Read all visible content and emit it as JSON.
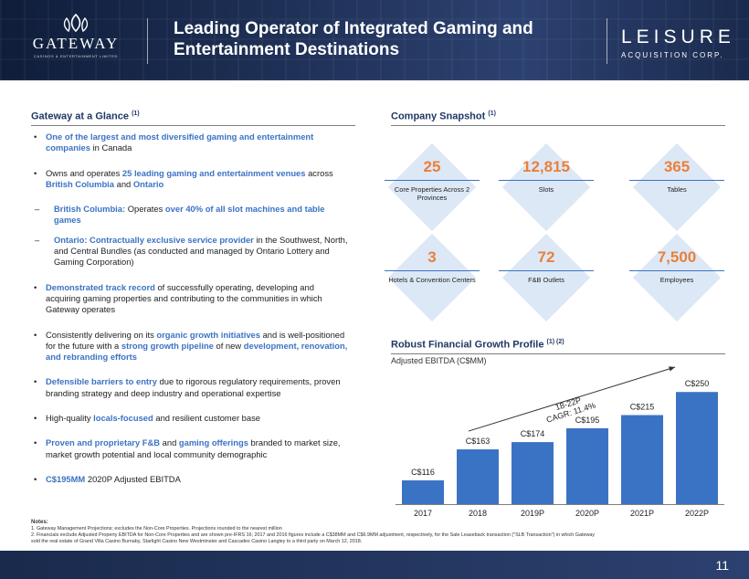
{
  "header": {
    "title_line1": "Leading Operator of Integrated Gaming and",
    "title_line2": "Entertainment Destinations",
    "left_logo": {
      "name": "GATEWAY",
      "tagline": "CASINOS & ENTERTAINMENT LIMITED"
    },
    "right_logo": {
      "name": "LEISURE",
      "sub": "ACQUISITION CORP."
    }
  },
  "glance": {
    "heading": "Gateway at a Glance",
    "heading_note": "(1)",
    "bullets": [
      {
        "parts": [
          {
            "t": "One of the largest and most diversified gaming and entertainment companies",
            "h": true
          },
          {
            "t": " in Canada"
          }
        ]
      },
      {
        "parts": [
          {
            "t": "Owns and operates "
          },
          {
            "t": "25 leading gaming and entertainment venues",
            "h": true
          },
          {
            "t": " across "
          },
          {
            "t": "British Columbia",
            "h": true
          },
          {
            "t": " and "
          },
          {
            "t": "Ontario",
            "h": true
          }
        ]
      },
      {
        "sub": true,
        "parts": [
          {
            "t": "British Columbia:",
            "h": true
          },
          {
            "t": " Operates "
          },
          {
            "t": "over 40% of all slot machines and table games",
            "h": true
          }
        ]
      },
      {
        "sub": true,
        "parts": [
          {
            "t": "Ontario: Contractually exclusive service provider",
            "h": true
          },
          {
            "t": " in the Southwest, North, and Central Bundles (as conducted and managed by Ontario Lottery and Gaming Corporation)"
          }
        ]
      },
      {
        "parts": [
          {
            "t": "Demonstrated track record",
            "h": true
          },
          {
            "t": " of successfully operating, developing and acquiring gaming properties and contributing to the communities in which Gateway operates"
          }
        ]
      },
      {
        "parts": [
          {
            "t": "Consistently delivering on its "
          },
          {
            "t": "organic growth initiatives",
            "h": true
          },
          {
            "t": " and is well-positioned for the future with a "
          },
          {
            "t": "strong growth pipeline",
            "h": true
          },
          {
            "t": " of new "
          },
          {
            "t": "development, renovation, and rebranding efforts",
            "h": true
          }
        ]
      },
      {
        "parts": [
          {
            "t": "Defensible barriers to entry",
            "h": true
          },
          {
            "t": " due to rigorous regulatory requirements, proven branding strategy and deep industry and operational expertise"
          }
        ]
      },
      {
        "parts": [
          {
            "t": "High-quality "
          },
          {
            "t": "locals-focused",
            "h": true
          },
          {
            "t": " and resilient customer base"
          }
        ]
      },
      {
        "parts": [
          {
            "t": "Proven and proprietary F&B",
            "h": true
          },
          {
            "t": " and "
          },
          {
            "t": "gaming offerings",
            "h": true
          },
          {
            "t": " branded to market size, market growth potential and local community demographic"
          }
        ]
      },
      {
        "parts": [
          {
            "t": "C$195MM",
            "h": true
          },
          {
            "t": " 2020P Adjusted EBITDA"
          }
        ]
      }
    ]
  },
  "snapshot": {
    "heading": "Company Snapshot",
    "heading_note": "(1)",
    "items": [
      {
        "value": "25",
        "label": "Core Properties Across 2 Provinces"
      },
      {
        "value": "12,815",
        "label": "Slots"
      },
      {
        "value": "365",
        "label": "Tables"
      },
      {
        "value": "3",
        "label": "Hotels & Convention Centers"
      },
      {
        "value": "72",
        "label": "F&B Outlets"
      },
      {
        "value": "7,500",
        "label": "Employees"
      }
    ]
  },
  "growth": {
    "heading": "Robust Financial Growth Profile",
    "heading_note": "(1) (2)",
    "subtitle": "Adjusted EBITDA (C$MM)"
  },
  "chart_data": {
    "type": "bar",
    "title": "Robust Financial Growth Profile",
    "ylabel": "Adjusted EBITDA (C$MM)",
    "categories": [
      "2017",
      "2018",
      "2019P",
      "2020P",
      "2021P",
      "2022P"
    ],
    "values": [
      116,
      163,
      174,
      195,
      215,
      250
    ],
    "data_labels": [
      "C$116",
      "C$163",
      "C$174",
      "C$195",
      "C$215",
      "C$250"
    ],
    "ylim": [
      80,
      260
    ],
    "color": "#3b73c4",
    "annotation_line1": "18-22P",
    "annotation_line2": "CAGR: 11.4%"
  },
  "notes": {
    "heading": "Notes:",
    "items": [
      "1.  Gateway Management Projections; excludes the Non-Core Properties. Projections rounded to the nearest million",
      "2.  Financials exclude Adjusted Property EBITDA for Non-Core Properties and are shown pre-IFRS 16; 2017 and 2016 figures include a C$38MM and C$6.9MM adjustment, respectively, for the Sale Leaseback transaction (\"SLB Transaction\") in which Gateway",
      "     sold the real estate of Grand Villa Casino Burnaby, Starlight Casino New Westminster and Cascades Casino Langley to a third party on March 12, 2018."
    ]
  },
  "footer": {
    "page_number": "11"
  },
  "colors": {
    "navy": "#1f3864",
    "accent_blue": "#3b73c4",
    "orange": "#e9803a",
    "tile": "#dde8f6"
  }
}
